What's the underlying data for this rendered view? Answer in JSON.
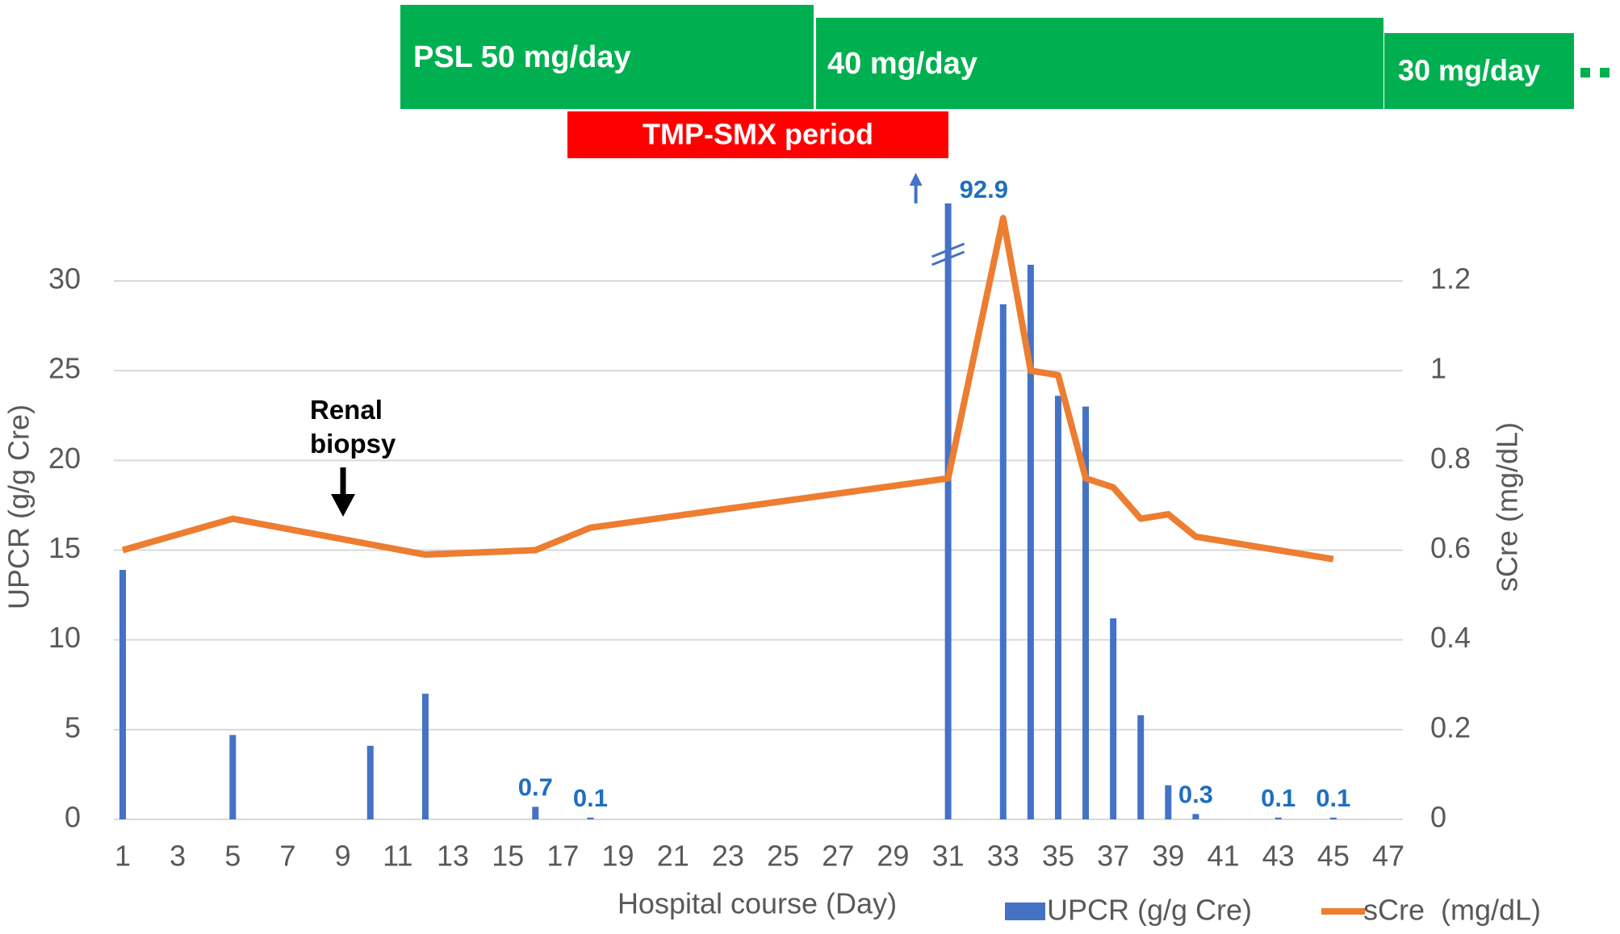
{
  "chart_data": {
    "type": "bar",
    "x_label": "Hospital course (Day)",
    "y_label": "UPCR (g/g Cre)",
    "y2_label": "sCre (mg/dL)",
    "xlim": [
      1,
      47
    ],
    "xticks": [
      1,
      3,
      5,
      7,
      9,
      11,
      13,
      15,
      17,
      19,
      21,
      23,
      25,
      27,
      29,
      31,
      33,
      35,
      37,
      39,
      41,
      43,
      45,
      47
    ],
    "ylim": [
      0,
      30
    ],
    "yticks": [
      0,
      5,
      10,
      15,
      20,
      25,
      30
    ],
    "y2lim": [
      0,
      1.2
    ],
    "y2ticks": [
      0,
      0.2,
      0.4,
      0.6,
      0.8,
      1,
      1.2
    ],
    "grid": true,
    "series": [
      {
        "name": "UPCR (g/g Cre)",
        "type": "bar",
        "color": "#4472c4",
        "x": [
          1,
          5,
          10,
          12,
          16,
          18,
          31,
          33,
          34,
          35,
          36,
          37,
          38,
          39,
          40,
          43,
          45
        ],
        "values": [
          13.9,
          4.7,
          4.1,
          7.0,
          0.7,
          0.1,
          92.9,
          28.7,
          30.9,
          23.6,
          23.0,
          11.2,
          5.8,
          1.9,
          0.3,
          0.1,
          0.1
        ],
        "value_labels": [
          null,
          null,
          null,
          null,
          "0.7",
          "0.1",
          "92.9",
          null,
          null,
          null,
          null,
          null,
          null,
          null,
          "0.3",
          "0.1",
          "0.1"
        ]
      },
      {
        "name": "sCre  (mg/dL)",
        "type": "line",
        "axis": "y2",
        "color": "#ed7d31",
        "x": [
          1,
          5,
          12,
          16,
          18,
          31,
          33,
          34,
          35,
          36,
          37,
          38,
          39,
          40,
          45
        ],
        "values": [
          0.6,
          0.67,
          0.59,
          0.6,
          0.65,
          0.76,
          1.34,
          1.0,
          0.99,
          0.76,
          0.74,
          0.67,
          0.68,
          0.63,
          0.58
        ]
      }
    ],
    "timeline": [
      "PSL 50 mg/day",
      "40 mg/day",
      "30 mg/day",
      "TMP-SMX period"
    ],
    "annotations": [
      "Renal biopsy"
    ]
  }
}
